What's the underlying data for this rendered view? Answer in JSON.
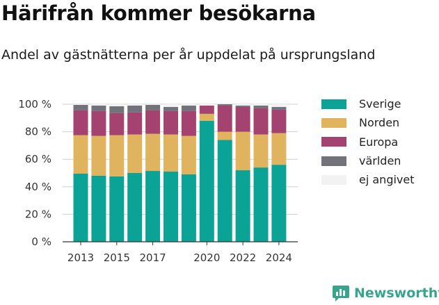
{
  "title": "Härifrån kommer besökarna",
  "subtitle": "Andel av gästnätterna per år uppdelat på ursprungsland",
  "brand": {
    "name": "Newsworthy",
    "icon": "newsworthy-logo-icon"
  },
  "chart_data": {
    "type": "bar",
    "stacked": true,
    "categories": [
      "2013",
      "2014",
      "2015",
      "2016",
      "2017",
      "2018",
      "2019",
      "2020",
      "2021",
      "2022",
      "2023",
      "2024"
    ],
    "x_tick_labels": [
      "2013",
      "2015",
      "2017",
      "2020",
      "2022",
      "2024"
    ],
    "y_ticks": [
      0,
      20,
      40,
      60,
      80,
      100
    ],
    "y_tick_labels": [
      "0 %",
      "20 %",
      "40 %",
      "60 %",
      "80 %",
      "100 %"
    ],
    "ylim": [
      0,
      100
    ],
    "grid": true,
    "legend_position": "right",
    "series": [
      {
        "name": "Sverige",
        "color": "#0aa396",
        "values": [
          49.5,
          48,
          47.5,
          50,
          51.5,
          51,
          49,
          88,
          74,
          52,
          54,
          56
        ]
      },
      {
        "name": "Norden",
        "color": "#e0b45e",
        "values": [
          28,
          29,
          30,
          28,
          27,
          27,
          28,
          5,
          6,
          28,
          24,
          23
        ]
      },
      {
        "name": "Europa",
        "color": "#a4436f",
        "values": [
          18,
          18,
          16,
          16,
          17,
          17,
          18,
          6,
          19,
          18,
          19,
          17
        ]
      },
      {
        "name": "världen",
        "color": "#72727a",
        "values": [
          4,
          4,
          5,
          5,
          4,
          3,
          4,
          0,
          1,
          1,
          2,
          2
        ]
      },
      {
        "name": "ej angivet",
        "color": "#f2f2f2",
        "values": [
          0.5,
          1,
          1.5,
          1,
          0.5,
          2,
          1,
          1,
          0,
          1,
          1,
          2
        ]
      }
    ]
  }
}
